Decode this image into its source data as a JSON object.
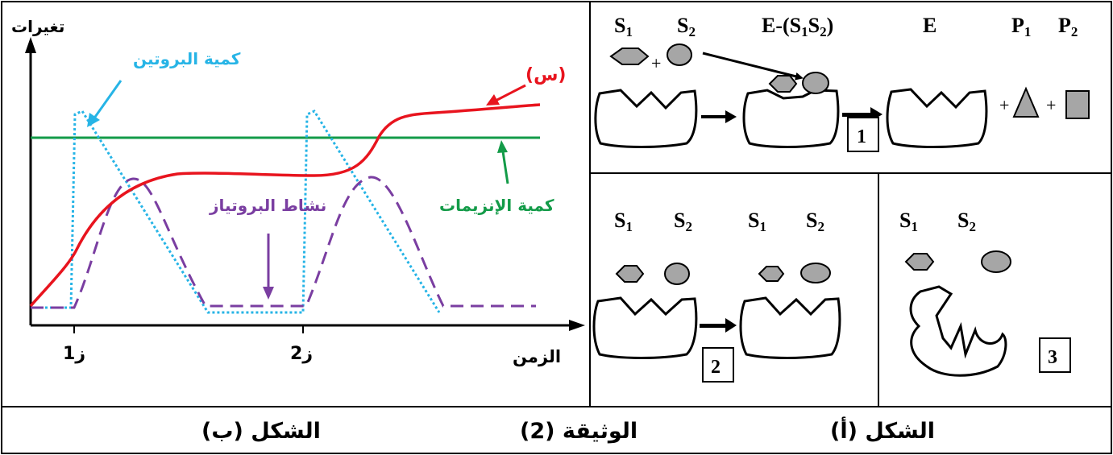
{
  "graph_b": {
    "y_axis_label": "تغيرات",
    "x_axis_label": "الزمن",
    "tick_z1": "ز1",
    "tick_z2": "ز2",
    "label_protein_amount": "كمية البروتين",
    "label_s": "(س)",
    "label_protease_activity": "نشاط البروتياز",
    "label_enzyme_amount": "كمية الإنزيمات",
    "colors": {
      "s_curve": "#e8141e",
      "enzyme_amount": "#139b48",
      "protein_amount": "#26b4e6",
      "protease_activity": "#7a3ea1"
    }
  },
  "figure_a": {
    "top": {
      "s1": "S1",
      "s2": "S2",
      "complex": "E-(S1S2)",
      "enzyme": "E",
      "p1": "P1",
      "p2": "P2",
      "plus": "+",
      "box": "1"
    },
    "bottom_left": {
      "s1_a": "S1",
      "s2_a": "S2",
      "s1_b": "S1",
      "s2_b": "S2",
      "box": "2"
    },
    "bottom_right": {
      "s1": "S1",
      "s2": "S2",
      "box": "3"
    }
  },
  "captions": {
    "fig_b": "الشكل (ب)",
    "doc": "الوثيقة (2)",
    "fig_a": "الشكل (أ)"
  }
}
